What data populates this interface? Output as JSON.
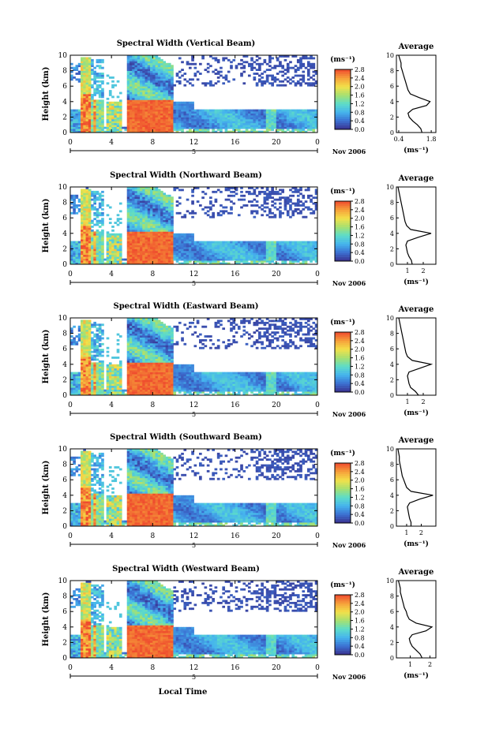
{
  "colors": {
    "colorbar": [
      "#3a2f8c",
      "#3b6fd1",
      "#45b4ee",
      "#5ddcc9",
      "#a6e070",
      "#f2e14a",
      "#f6a13a",
      "#ef4b2e"
    ]
  },
  "shared": {
    "time_ticks": [
      "0",
      "4",
      "8",
      "12",
      "16",
      "20",
      "0"
    ],
    "date_label": "Nov 2006",
    "day_mark": "5",
    "x_title": "Local Time",
    "y_label": "Height (km)",
    "y_ticks": [
      "0",
      "2",
      "4",
      "6",
      "8",
      "10"
    ],
    "cbar_unit": "(ms⁻¹)",
    "cbar_ticks": [
      "0.0",
      "0.4",
      "0.8",
      "1.2",
      "1.6",
      "2.0",
      "2.4",
      "2.8"
    ],
    "avg_title": "Average",
    "avg_xlabel": "(ms⁻¹)"
  },
  "chart_data": [
    {
      "type": "heatmap",
      "title": "Spectral Width (Vertical Beam)",
      "x_range_hours": [
        0,
        24
      ],
      "ylim": [
        0,
        10
      ],
      "clim": [
        0.0,
        2.8
      ],
      "profile": {
        "title": "Average",
        "xlim": [
          0.3,
          2.0
        ],
        "xticks": [
          "0.4",
          "1.8"
        ],
        "xtick_values": [
          0.4,
          1.8
        ],
        "heights": [
          0,
          0.5,
          1,
          1.5,
          2,
          2.5,
          3,
          3.5,
          4,
          4.5,
          5,
          5.5,
          6,
          6.5,
          7,
          7.5,
          8,
          8.5,
          9,
          9.5,
          10
        ],
        "values": [
          1.4,
          1.35,
          1.2,
          1.0,
          0.85,
          0.8,
          1.0,
          1.6,
          1.75,
          1.3,
          0.9,
          0.8,
          0.75,
          0.7,
          0.65,
          0.6,
          0.55,
          0.5,
          0.5,
          0.45,
          0.4
        ]
      }
    },
    {
      "type": "heatmap",
      "title": "Spectral Width (Northward Beam)",
      "x_range_hours": [
        0,
        24
      ],
      "ylim": [
        0,
        10
      ],
      "clim": [
        0.0,
        2.8
      ],
      "profile": {
        "title": "Average",
        "xlim": [
          0.3,
          2.8
        ],
        "xticks": [
          "1",
          "2"
        ],
        "xtick_values": [
          1,
          2
        ],
        "heights": [
          0,
          0.5,
          1,
          1.5,
          2,
          2.5,
          3,
          3.5,
          4,
          4.5,
          5,
          5.5,
          6,
          6.5,
          7,
          7.5,
          8,
          8.5,
          9,
          9.5,
          10
        ],
        "values": [
          1.3,
          1.25,
          1.1,
          1.0,
          0.95,
          0.9,
          1.0,
          1.7,
          2.5,
          1.2,
          0.95,
          0.85,
          0.8,
          0.75,
          0.7,
          0.65,
          0.6,
          0.55,
          0.5,
          0.45,
          0.4
        ]
      }
    },
    {
      "type": "heatmap",
      "title": "Spectral Width (Eastward Beam)",
      "x_range_hours": [
        0,
        24
      ],
      "ylim": [
        0,
        10
      ],
      "clim": [
        0.0,
        2.8
      ],
      "profile": {
        "title": "Average",
        "xlim": [
          0.3,
          2.8
        ],
        "xticks": [
          "1",
          "2"
        ],
        "xtick_values": [
          1,
          2
        ],
        "heights": [
          0,
          0.5,
          1,
          1.5,
          2,
          2.5,
          3,
          3.5,
          4,
          4.5,
          5,
          5.5,
          6,
          6.5,
          7,
          7.5,
          8,
          8.5,
          9,
          9.5,
          10
        ],
        "values": [
          1.7,
          1.5,
          1.2,
          1.1,
          1.05,
          1.0,
          1.1,
          1.8,
          2.5,
          1.3,
          1.0,
          0.9,
          0.85,
          0.8,
          0.75,
          0.7,
          0.65,
          0.6,
          0.55,
          0.5,
          0.45
        ]
      }
    },
    {
      "type": "heatmap",
      "title": "Spectral Width (Southward Beam)",
      "x_range_hours": [
        0,
        24
      ],
      "ylim": [
        0,
        10
      ],
      "clim": [
        0.0,
        2.8
      ],
      "profile": {
        "title": "Average",
        "xlim": [
          0.3,
          3.0
        ],
        "xticks": [
          "1",
          "2"
        ],
        "xtick_values": [
          1,
          2
        ],
        "heights": [
          0,
          0.5,
          1,
          1.5,
          2,
          2.5,
          3,
          3.5,
          4,
          4.5,
          5,
          5.5,
          6,
          6.5,
          7,
          7.5,
          8,
          8.5,
          9,
          9.5,
          10
        ],
        "values": [
          1.3,
          1.3,
          1.2,
          1.15,
          1.1,
          1.05,
          1.2,
          1.9,
          2.8,
          1.3,
          1.0,
          0.9,
          0.8,
          0.7,
          0.65,
          0.6,
          0.55,
          0.5,
          0.5,
          0.45,
          0.4
        ]
      }
    },
    {
      "type": "heatmap",
      "title": "Spectral Width (Westward Beam)",
      "x_range_hours": [
        0,
        24
      ],
      "ylim": [
        0,
        10
      ],
      "clim": [
        0.0,
        2.8
      ],
      "profile": {
        "title": "Average",
        "xlim": [
          0.3,
          2.3
        ],
        "xticks": [
          "1",
          "2"
        ],
        "xtick_values": [
          1,
          2
        ],
        "heights": [
          0,
          0.5,
          1,
          1.5,
          2,
          2.5,
          3,
          3.5,
          4,
          4.5,
          5,
          5.5,
          6,
          6.5,
          7,
          7.5,
          8,
          8.5,
          9,
          9.5,
          10
        ],
        "values": [
          1.6,
          1.5,
          1.3,
          1.1,
          1.0,
          0.95,
          1.1,
          1.8,
          2.1,
          1.3,
          0.95,
          0.85,
          0.8,
          0.7,
          0.65,
          0.6,
          0.55,
          0.5,
          0.5,
          0.45,
          0.4
        ]
      }
    }
  ]
}
